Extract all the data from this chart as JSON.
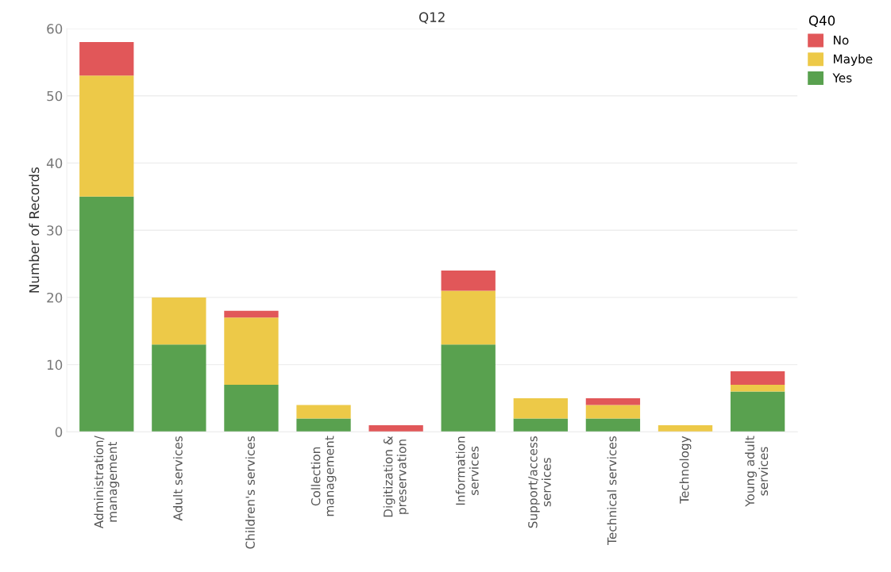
{
  "chart_data": {
    "type": "bar",
    "stacked": true,
    "title": "Q12",
    "ylabel": "Number of Records",
    "legend_title": "Q40",
    "legend": "top right",
    "grid": "y",
    "categories": [
      "Administration/\nmanagement",
      "Adult services",
      "Children's services",
      "Collection\nmanagement",
      "Digitization &\npreservation",
      "Information\nservices",
      "Support/access\nservices",
      "Technical services",
      "Technology",
      "Young adult\nservices"
    ],
    "series": [
      {
        "name": "Yes",
        "color": "#59a14f",
        "values": [
          35,
          13,
          7,
          2,
          0,
          13,
          2,
          2,
          0,
          6
        ]
      },
      {
        "name": "Maybe",
        "color": "#edc948",
        "values": [
          18,
          7,
          10,
          2,
          0,
          8,
          3,
          2,
          1,
          1
        ]
      },
      {
        "name": "No",
        "color": "#e15759",
        "values": [
          5,
          0,
          1,
          0,
          1,
          3,
          0,
          1,
          0,
          2
        ]
      }
    ],
    "ylim": [
      0,
      60
    ],
    "yticks": [
      0,
      10,
      20,
      30,
      40,
      50,
      60
    ]
  }
}
